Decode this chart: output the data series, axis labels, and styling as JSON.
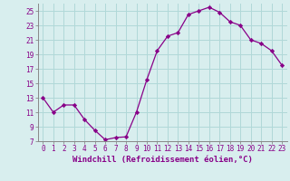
{
  "x": [
    0,
    1,
    2,
    3,
    4,
    5,
    6,
    7,
    8,
    9,
    10,
    11,
    12,
    13,
    14,
    15,
    16,
    17,
    18,
    19,
    20,
    21,
    22,
    23
  ],
  "y": [
    13,
    11,
    12,
    12,
    10,
    8.5,
    7.2,
    7.5,
    7.6,
    11,
    15.5,
    19.5,
    21.5,
    22,
    24.5,
    25,
    25.5,
    24.8,
    23.5,
    23,
    21,
    20.5,
    19.5,
    17.5
  ],
  "line_color": "#880088",
  "marker": "D",
  "marker_size": 2.2,
  "bg_color": "#d8eeee",
  "grid_color": "#b0d8d8",
  "xlabel": "Windchill (Refroidissement éolien,°C)",
  "xlabel_fontsize": 6.5,
  "ylim": [
    7,
    26
  ],
  "xlim": [
    -0.5,
    23.5
  ],
  "yticks": [
    7,
    9,
    11,
    13,
    15,
    17,
    19,
    21,
    23,
    25
  ],
  "xticks": [
    0,
    1,
    2,
    3,
    4,
    5,
    6,
    7,
    8,
    9,
    10,
    11,
    12,
    13,
    14,
    15,
    16,
    17,
    18,
    19,
    20,
    21,
    22,
    23
  ],
  "tick_fontsize": 5.5,
  "tick_color": "#880088",
  "spine_color": "#888888"
}
